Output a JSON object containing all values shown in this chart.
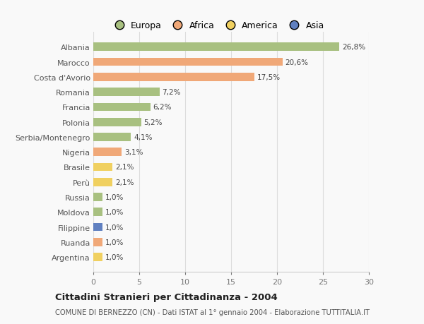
{
  "categories": [
    "Albania",
    "Marocco",
    "Costa d'Avorio",
    "Romania",
    "Francia",
    "Polonia",
    "Serbia/Montenegro",
    "Nigeria",
    "Brasile",
    "Perù",
    "Russia",
    "Moldova",
    "Filippine",
    "Ruanda",
    "Argentina"
  ],
  "values": [
    26.8,
    20.6,
    17.5,
    7.2,
    6.2,
    5.2,
    4.1,
    3.1,
    2.1,
    2.1,
    1.0,
    1.0,
    1.0,
    1.0,
    1.0
  ],
  "labels": [
    "26,8%",
    "20,6%",
    "17,5%",
    "7,2%",
    "6,2%",
    "5,2%",
    "4,1%",
    "3,1%",
    "2,1%",
    "2,1%",
    "1,0%",
    "1,0%",
    "1,0%",
    "1,0%",
    "1,0%"
  ],
  "colors": [
    "#a8c080",
    "#f0a878",
    "#f0a878",
    "#a8c080",
    "#a8c080",
    "#a8c080",
    "#a8c080",
    "#f0a878",
    "#f0d060",
    "#f0d060",
    "#a8c080",
    "#a8c080",
    "#6080c0",
    "#f0a878",
    "#f0d060"
  ],
  "legend_labels": [
    "Europa",
    "Africa",
    "America",
    "Asia"
  ],
  "legend_colors": [
    "#a8c080",
    "#f0a878",
    "#f0d060",
    "#6080c0"
  ],
  "title_main": "Cittadini Stranieri per Cittadinanza - 2004",
  "title_sub": "COMUNE DI BERNEZZO (CN) - Dati ISTAT al 1° gennaio 2004 - Elaborazione TUTTITALIA.IT",
  "xlim": [
    0,
    30
  ],
  "xticks": [
    0,
    5,
    10,
    15,
    20,
    25,
    30
  ],
  "bg_color": "#f9f9f9",
  "bar_height": 0.55
}
